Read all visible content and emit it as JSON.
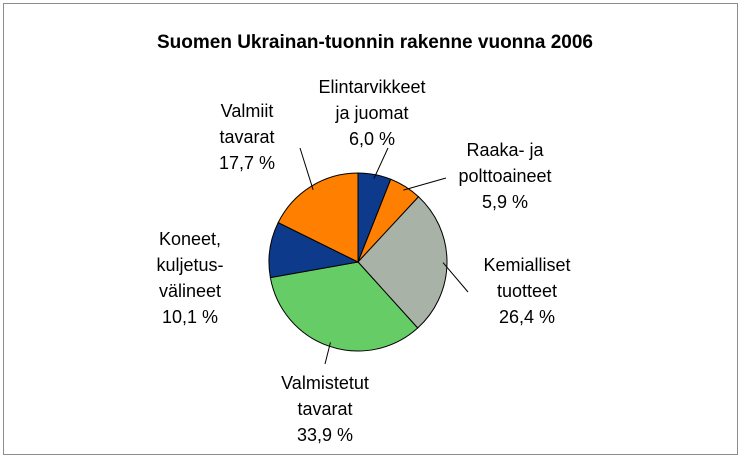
{
  "chart_data": {
    "type": "pie",
    "title": "Suomen Ukrainan-tuonnin rakenne vuonna 2006",
    "categories": [
      [
        "Elintarvikkeet",
        "ja juomat"
      ],
      [
        "Raaka- ja",
        "polttoaineet"
      ],
      [
        "Kemialliset",
        "tuotteet"
      ],
      [
        "Valmistetut",
        "tavarat"
      ],
      [
        "Koneet,",
        "kuljetus-",
        "välineet"
      ],
      [
        "Valmiit",
        "tavarat"
      ]
    ],
    "values": [
      6.0,
      5.9,
      26.4,
      33.9,
      10.1,
      17.7
    ],
    "value_labels": [
      "6,0 %",
      "5,9 %",
      "26,4 %",
      "33,9 %",
      "10,1 %",
      "17,7 %"
    ],
    "colors": [
      "#0d3a8a",
      "#ff8000",
      "#a9b2a6",
      "#66cc66",
      "#0d3a8a",
      "#ff8000"
    ]
  }
}
